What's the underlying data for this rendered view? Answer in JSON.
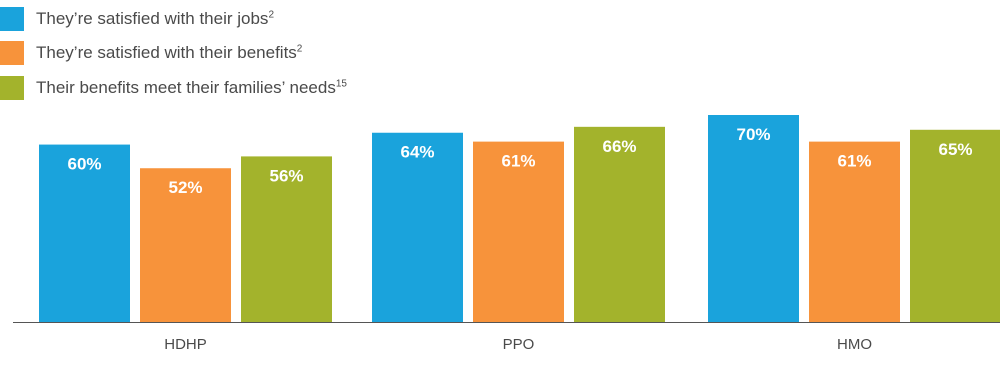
{
  "legend": [
    {
      "label": "They’re satisfied with their jobs",
      "sup": "2",
      "color": "#1aa3dc"
    },
    {
      "label": "They’re satisfied with their benefits",
      "sup": "2",
      "color": "#f7933b"
    },
    {
      "label": "Their benefits meet their families’ needs",
      "sup": "15",
      "color": "#a3b32c"
    }
  ],
  "chart_data": {
    "type": "bar",
    "categories": [
      "HDHP",
      "PPO",
      "HMO"
    ],
    "series": [
      {
        "name": "They’re satisfied with their jobs",
        "values": [
          60,
          64,
          70
        ],
        "color": "#1aa3dc"
      },
      {
        "name": "They’re satisfied with their benefits",
        "values": [
          52,
          61,
          61
        ],
        "color": "#f7933b"
      },
      {
        "name": "Their benefits meet their families’ needs",
        "values": [
          56,
          66,
          65
        ],
        "color": "#a3b32c"
      }
    ],
    "value_suffix": "%",
    "title": "",
    "xlabel": "",
    "ylabel": "",
    "ylim": [
      0,
      70
    ],
    "grid": false,
    "legend_position": "top-left"
  }
}
